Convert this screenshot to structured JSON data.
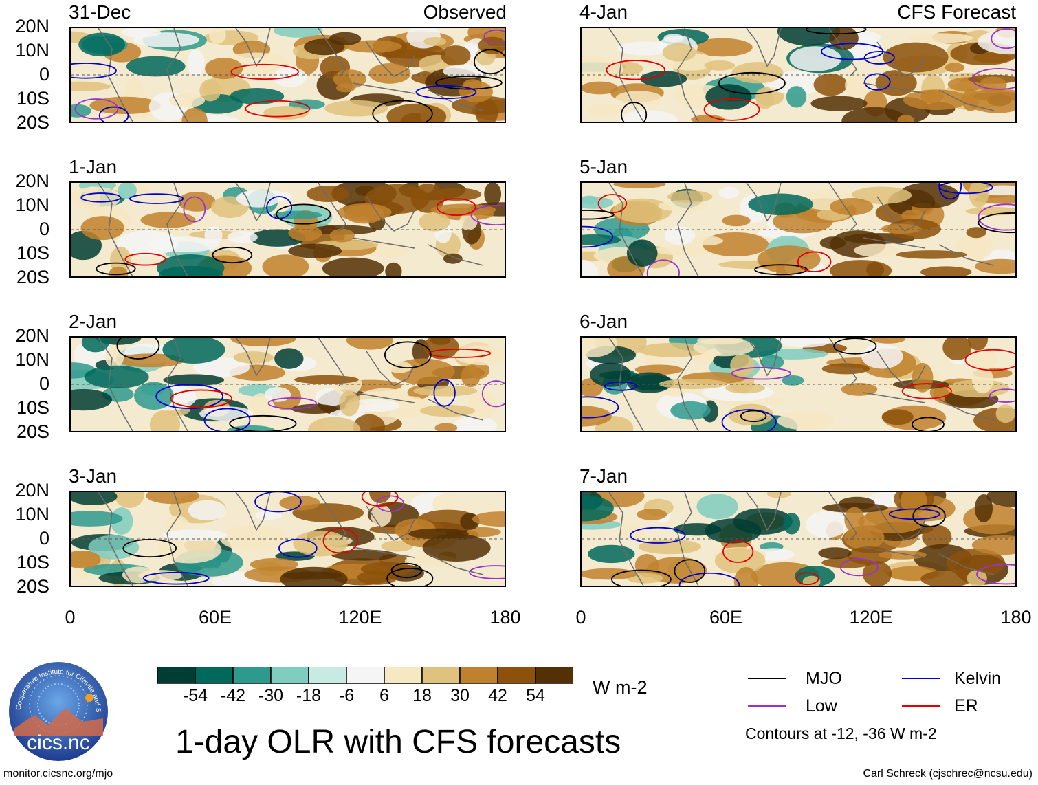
{
  "title": "1-day OLR with CFS forecasts",
  "observed_label": "Observed",
  "forecast_label": "CFS Forecast",
  "observed_panels": [
    "31-Dec",
    "1-Jan",
    "2-Jan",
    "3-Jan"
  ],
  "forecast_panels": [
    "4-Jan",
    "5-Jan",
    "6-Jan",
    "7-Jan"
  ],
  "lat_ticks": [
    "20N",
    "10N",
    "0",
    "10S",
    "20S"
  ],
  "lon_ticks": [
    "0",
    "60E",
    "120E",
    "180"
  ],
  "colorbar": {
    "labels": [
      "-54",
      "-42",
      "-30",
      "-18",
      "-6",
      "6",
      "18",
      "30",
      "42",
      "54"
    ],
    "colors": [
      "#003d33",
      "#00695c",
      "#2e9a8e",
      "#7fcdbf",
      "#c7eae3",
      "#f5f5f5",
      "#f6e8c3",
      "#dfc27d",
      "#bf812d",
      "#8c510a",
      "#543005"
    ],
    "units": "W m-2"
  },
  "legend": {
    "items": [
      {
        "label": "MJO",
        "color": "#000000"
      },
      {
        "label": "Kelvin",
        "color": "#0000cc"
      },
      {
        "label": "Low",
        "color": "#9933cc"
      },
      {
        "label": "ER",
        "color": "#e00000"
      }
    ],
    "note": "Contours at -12, -36 W m-2"
  },
  "logo_text": "cics.nc",
  "logo_ring_text": "Cooperative Institute for Climate and Satellites",
  "footer_left": "monitor.cicsnc.org/mjo",
  "footer_right": "Carl Schreck (cjschrec@ncsu.edu)"
}
